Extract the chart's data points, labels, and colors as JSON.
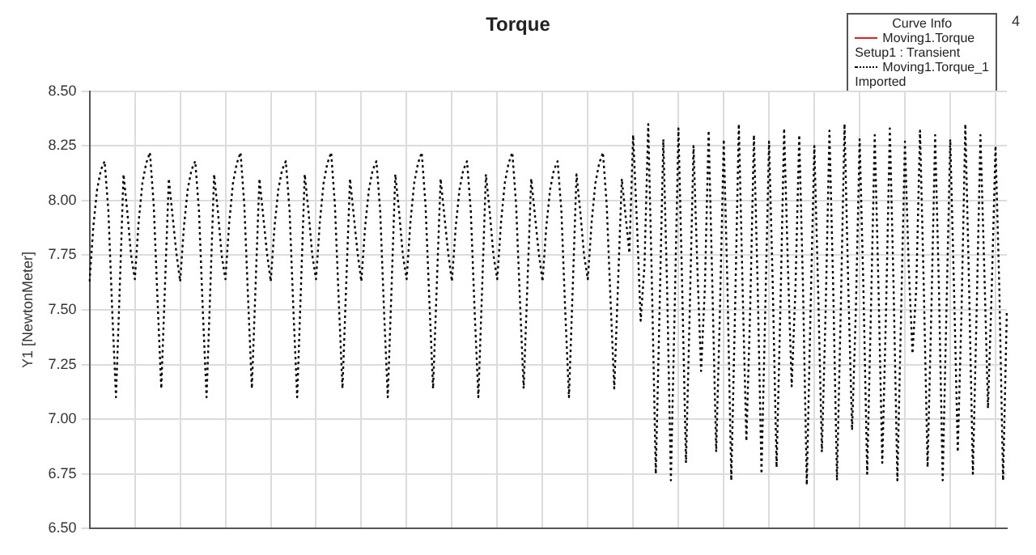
{
  "chart_data": {
    "type": "line",
    "title": "Torque",
    "ylabel": "Y1 [NewtonMeter]",
    "legend_title": "Curve Info",
    "annotations": [
      "Setup1 : Transient",
      "Imported",
      "4"
    ],
    "categories": [
      null,
      null,
      null,
      null,
      null,
      null,
      null,
      null,
      null,
      null,
      null,
      null,
      null,
      null,
      null,
      null,
      null,
      null,
      null,
      null,
      null,
      null,
      null,
      null,
      null,
      null,
      null,
      null,
      null,
      null,
      null,
      null,
      null,
      null,
      null,
      null,
      null,
      null,
      null,
      null,
      null,
      null,
      null,
      null,
      null,
      null,
      null,
      null,
      null,
      null,
      null,
      null,
      null,
      null,
      null,
      null,
      null,
      null,
      null,
      null,
      null,
      null,
      null,
      null,
      null,
      null,
      null,
      null,
      null,
      null,
      null,
      null,
      null,
      null,
      null,
      null,
      null,
      null,
      null,
      null,
      null,
      null,
      null,
      null,
      null,
      null,
      null,
      null,
      null,
      null,
      null,
      null,
      null,
      null,
      null,
      null,
      null,
      null,
      null,
      null,
      null,
      null,
      null,
      null,
      null,
      null,
      null,
      null,
      null,
      null,
      null,
      null,
      null,
      null,
      null,
      null,
      null,
      null,
      null,
      null,
      null,
      null,
      null,
      null,
      null,
      null,
      null,
      null,
      null,
      null,
      null,
      null,
      null,
      null,
      null,
      null,
      null,
      null,
      null,
      null,
      null,
      null,
      null,
      null,
      null,
      null,
      null,
      null,
      null,
      null,
      null,
      null,
      null,
      null,
      null,
      null,
      null,
      null,
      null,
      null,
      null,
      null,
      null,
      null,
      null,
      null,
      null,
      null,
      null,
      null,
      null,
      null,
      null,
      null,
      null,
      null,
      null,
      null,
      null,
      null,
      null,
      null,
      null,
      null,
      null,
      null,
      null,
      null,
      null,
      null,
      null,
      null,
      null,
      null,
      null,
      null,
      null,
      null,
      null,
      null,
      null,
      null,
      null,
      null,
      null,
      null,
      null,
      null,
      null,
      null,
      null,
      null,
      null,
      null,
      null,
      null,
      null,
      null,
      null,
      null,
      null,
      null,
      null,
      null,
      null,
      null,
      null,
      null,
      null,
      null,
      null,
      null,
      null,
      null,
      null,
      null,
      null,
      null,
      null,
      null,
      null,
      null,
      null,
      null
    ],
    "series": [
      {
        "name": "Moving1.Torque",
        "color": "#e02020",
        "line_style": "solid",
        "values": [
          null,
          null,
          null,
          null,
          null,
          null,
          null,
          null,
          null,
          null,
          null,
          null,
          null,
          null,
          null,
          null,
          null,
          null,
          null,
          null,
          null,
          null,
          null,
          null,
          null,
          null,
          null,
          null,
          null,
          null,
          null,
          null,
          null,
          null,
          null,
          null,
          null,
          null,
          null,
          null,
          null,
          null,
          null,
          null,
          null,
          null,
          null,
          null,
          null,
          null,
          null,
          null,
          null,
          null,
          null,
          null,
          null,
          null,
          null,
          null,
          null,
          null,
          null,
          null,
          null,
          null,
          null,
          null,
          null,
          null,
          null,
          null,
          null,
          null,
          null,
          null,
          null,
          null,
          null,
          null,
          null,
          null,
          null,
          null,
          null,
          null,
          null,
          null,
          null,
          null,
          null,
          null,
          null,
          null,
          null,
          null,
          null,
          null,
          null,
          null,
          null,
          null,
          null,
          null,
          null,
          null,
          null,
          null,
          null,
          null,
          null,
          null,
          null,
          null,
          null,
          null,
          null,
          null,
          null,
          null,
          null,
          null,
          null,
          null,
          null,
          null,
          null,
          null,
          null,
          null,
          null,
          null,
          null,
          null,
          null,
          null,
          null,
          null,
          null,
          null,
          null,
          null,
          null,
          null,
          null,
          null,
          null,
          null,
          null,
          null,
          null,
          null,
          null,
          null,
          null,
          null,
          null,
          null,
          null,
          null,
          null,
          null,
          null,
          null,
          null,
          null,
          null,
          null,
          null,
          null,
          null,
          null,
          null,
          null,
          null,
          null,
          null,
          null,
          null,
          null,
          null,
          null,
          null,
          null,
          null,
          null,
          null,
          null,
          null,
          null,
          null,
          null,
          null,
          null,
          null,
          null,
          null,
          null,
          null,
          null,
          null,
          null,
          null,
          null,
          null,
          null,
          null,
          null,
          null,
          null,
          null,
          null,
          null,
          null,
          null,
          null,
          null,
          null,
          null,
          null,
          null,
          null,
          null,
          null,
          null,
          null,
          null,
          null,
          null,
          null,
          null,
          null,
          null,
          null,
          null,
          null,
          null,
          null,
          null,
          null,
          null,
          null,
          null,
          null
        ]
      },
      {
        "name": "Moving1.Torque_1",
        "color": "#000000",
        "line_style": "dotted",
        "values": [
          7.63,
          7.88,
          8.05,
          8.14,
          8.18,
          7.95,
          7.5,
          7.1,
          7.6,
          8.12,
          7.95,
          7.75,
          7.64,
          7.9,
          8.08,
          8.17,
          8.22,
          7.98,
          7.55,
          7.14,
          7.62,
          8.1,
          7.93,
          7.76,
          7.63,
          7.88,
          8.05,
          8.14,
          8.18,
          7.95,
          7.5,
          7.1,
          7.6,
          8.12,
          7.95,
          7.75,
          7.64,
          7.9,
          8.08,
          8.17,
          8.22,
          7.98,
          7.55,
          7.14,
          7.62,
          8.1,
          7.93,
          7.76,
          7.63,
          7.88,
          8.05,
          8.14,
          8.18,
          7.95,
          7.5,
          7.1,
          7.6,
          8.12,
          7.95,
          7.75,
          7.64,
          7.9,
          8.08,
          8.17,
          8.22,
          7.98,
          7.55,
          7.14,
          7.62,
          8.1,
          7.93,
          7.76,
          7.63,
          7.88,
          8.05,
          8.14,
          8.18,
          7.95,
          7.5,
          7.1,
          7.6,
          8.12,
          7.95,
          7.75,
          7.64,
          7.9,
          8.08,
          8.17,
          8.22,
          7.98,
          7.55,
          7.14,
          7.62,
          8.1,
          7.93,
          7.76,
          7.63,
          7.88,
          8.05,
          8.14,
          8.18,
          7.95,
          7.5,
          7.1,
          7.6,
          8.12,
          7.95,
          7.75,
          7.64,
          7.9,
          8.08,
          8.17,
          8.22,
          7.98,
          7.55,
          7.14,
          7.62,
          8.1,
          7.93,
          7.76,
          7.63,
          7.88,
          8.05,
          8.14,
          8.18,
          7.95,
          7.5,
          7.1,
          7.6,
          8.12,
          7.95,
          7.75,
          7.64,
          7.9,
          8.08,
          8.17,
          8.22,
          7.98,
          7.55,
          7.14,
          7.62,
          8.1,
          7.93,
          7.76,
          8.3,
          7.9,
          7.45,
          7.7,
          8.35,
          7.6,
          6.75,
          7.5,
          8.28,
          7.6,
          6.72,
          7.5,
          8.33,
          7.6,
          6.8,
          7.5,
          8.25,
          7.7,
          7.22,
          7.6,
          8.32,
          7.6,
          6.85,
          7.5,
          8.28,
          7.6,
          6.72,
          7.5,
          8.35,
          7.6,
          6.9,
          7.5,
          8.3,
          7.6,
          6.75,
          7.5,
          8.27,
          7.6,
          6.78,
          7.5,
          8.33,
          7.7,
          7.15,
          7.6,
          8.3,
          7.6,
          6.7,
          7.5,
          8.25,
          7.6,
          6.85,
          7.5,
          8.32,
          7.6,
          6.72,
          7.5,
          8.35,
          7.6,
          6.95,
          7.5,
          8.28,
          7.6,
          6.75,
          7.5,
          8.3,
          7.6,
          6.8,
          7.5,
          8.33,
          7.6,
          6.72,
          7.5,
          8.27,
          7.7,
          7.3,
          7.6,
          8.32,
          7.6,
          6.78,
          7.5,
          8.3,
          7.6,
          6.72,
          7.5,
          8.28,
          7.6,
          6.85,
          7.5,
          8.35,
          7.6,
          6.75,
          7.5,
          8.3,
          7.7,
          7.05,
          7.6,
          8.25,
          7.6,
          6.72,
          7.5
        ]
      }
    ],
    "ylim": [
      6.5,
      8.5
    ],
    "yticks": [
      {
        "value": 6.5,
        "label": "6.50"
      },
      {
        "value": 6.75,
        "label": "6.75"
      },
      {
        "value": 7,
        "label": "7.00"
      },
      {
        "value": 7.25,
        "label": "7.25"
      },
      {
        "value": 7.5,
        "label": "7.50"
      },
      {
        "value": 7.75,
        "label": "7.75"
      },
      {
        "value": 8,
        "label": "8.00"
      },
      {
        "value": 8.25,
        "label": "8.25"
      },
      {
        "value": 8.5,
        "label": "8.50"
      }
    ],
    "grid": true,
    "legend": "top right",
    "tick_labels": "y",
    "marker": "none"
  }
}
